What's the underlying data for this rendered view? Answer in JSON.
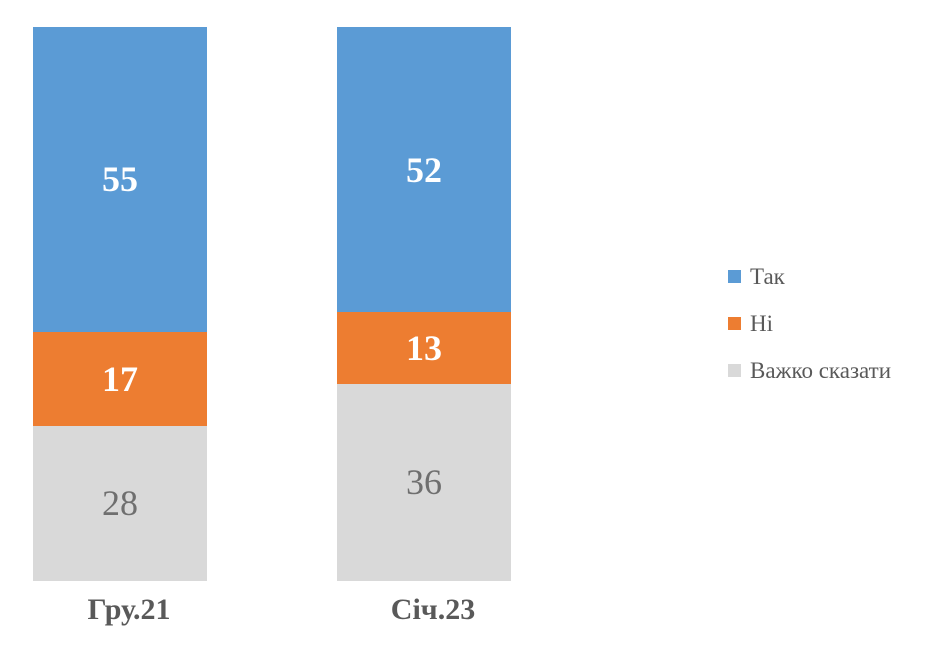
{
  "chart_data": {
    "type": "bar",
    "subtype": "stacked-100-percent",
    "orientation": "vertical",
    "title": "",
    "xlabel": "",
    "ylabel": "",
    "axis_visible": false,
    "grid": false,
    "legend_position": "right-middle",
    "background_color": "#FFFFFF",
    "category_label_color": "#595959",
    "legend_text_color": "#595959",
    "categories": [
      "Гру.21",
      "Січ.23"
    ],
    "series": [
      {
        "name": "Так",
        "values": [
          55,
          52
        ],
        "color": "#5B9BD5",
        "label_color": "#FFFFFF",
        "label_bold": true
      },
      {
        "name": "Ні",
        "values": [
          17,
          13
        ],
        "color": "#ED7D31",
        "label_color": "#FFFFFF",
        "label_bold": true
      },
      {
        "name": "Важко сказати",
        "values": [
          28,
          36
        ],
        "color": "#D9D9D9",
        "label_color": "#6F6F6F",
        "label_bold": false
      }
    ]
  }
}
